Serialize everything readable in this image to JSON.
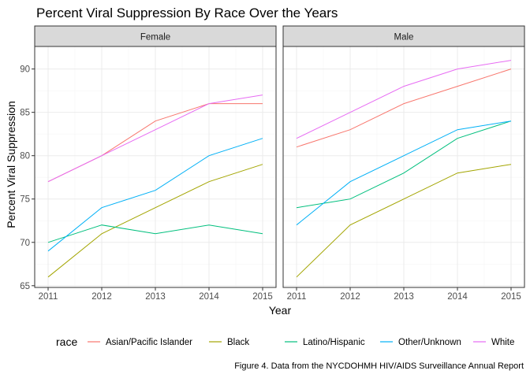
{
  "chart_data": {
    "type": "line",
    "title": "Percent Viral Suppression By Race Over the Years",
    "xlabel": "Year",
    "ylabel": "Percent Viral Suppression",
    "caption": "Figure 4. Data from the NYCDOHMH HIV/AIDS Surveillance Annual Report",
    "x": [
      2011,
      2012,
      2013,
      2014,
      2015
    ],
    "x_ticks": [
      "2011",
      "2012",
      "2013",
      "2014",
      "2015"
    ],
    "ylim": [
      64.8,
      92.6
    ],
    "y_ticks": [
      65,
      70,
      75,
      80,
      85,
      90
    ],
    "grid": true,
    "legend": {
      "title": "race",
      "position": "bottom"
    },
    "facets": [
      {
        "label": "Female",
        "series": [
          {
            "name": "Asian/Pacific Islander",
            "color": "#F8766D",
            "values": [
              77,
              80,
              84,
              86,
              86
            ]
          },
          {
            "name": "Black",
            "color": "#A3A500",
            "values": [
              66,
              71,
              74,
              77,
              79
            ]
          },
          {
            "name": "Latino/Hispanic",
            "color": "#00BF7D",
            "values": [
              70,
              72,
              71,
              72,
              71
            ]
          },
          {
            "name": "Other/Unknown",
            "color": "#00B0F6",
            "values": [
              69,
              74,
              76,
              80,
              82
            ]
          },
          {
            "name": "White",
            "color": "#E76BF3",
            "values": [
              77,
              80,
              83,
              86,
              87
            ]
          }
        ]
      },
      {
        "label": "Male",
        "series": [
          {
            "name": "Asian/Pacific Islander",
            "color": "#F8766D",
            "values": [
              81,
              83,
              86,
              88,
              90
            ]
          },
          {
            "name": "Black",
            "color": "#A3A500",
            "values": [
              66,
              72,
              75,
              78,
              79
            ]
          },
          {
            "name": "Latino/Hispanic",
            "color": "#00BF7D",
            "values": [
              74,
              75,
              78,
              82,
              84
            ]
          },
          {
            "name": "Other/Unknown",
            "color": "#00B0F6",
            "values": [
              72,
              77,
              80,
              83,
              84
            ]
          },
          {
            "name": "White",
            "color": "#E76BF3",
            "values": [
              82,
              85,
              88,
              90,
              91
            ]
          }
        ]
      }
    ]
  }
}
